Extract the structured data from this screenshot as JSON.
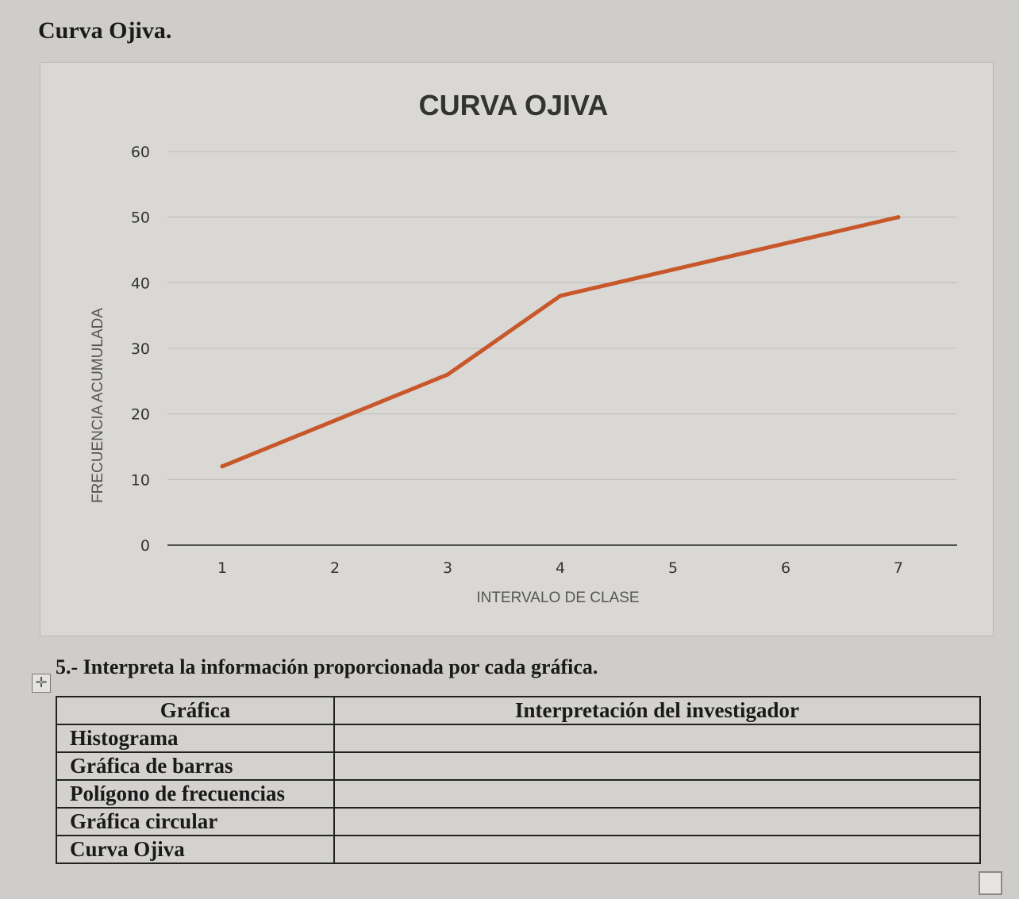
{
  "heading": "Curva Ojiva.",
  "chart_data": {
    "type": "line",
    "title": "CURVA OJIVA",
    "xlabel": "INTERVALO DE CLASE",
    "ylabel": "FRECUENCIA ACUMULADA",
    "categories": [
      "1",
      "2",
      "3",
      "4",
      "5",
      "6",
      "7"
    ],
    "series": [
      {
        "values": [
          12,
          19,
          26,
          38,
          42,
          46,
          50
        ],
        "color": "#c8572a"
      }
    ],
    "ylim": [
      0,
      60
    ],
    "yticks": [
      0,
      10,
      20,
      30,
      40,
      50,
      60
    ],
    "grid": true,
    "legend": "none"
  },
  "question": "5.- Interpreta la información proporcionada por cada gráfica.",
  "table": {
    "headers": [
      "Gráfica",
      "Interpretación del investigador"
    ],
    "rows": [
      {
        "name": "Histograma",
        "value": ""
      },
      {
        "name": "Gráfica de barras",
        "value": ""
      },
      {
        "name": "Polígono de frecuencias",
        "value": ""
      },
      {
        "name": "Gráfica circular",
        "value": ""
      },
      {
        "name": "Curva Ojiva",
        "value": ""
      }
    ]
  },
  "icons": {
    "table_move": "move-cross-icon",
    "resize": "resize-handle-icon"
  }
}
